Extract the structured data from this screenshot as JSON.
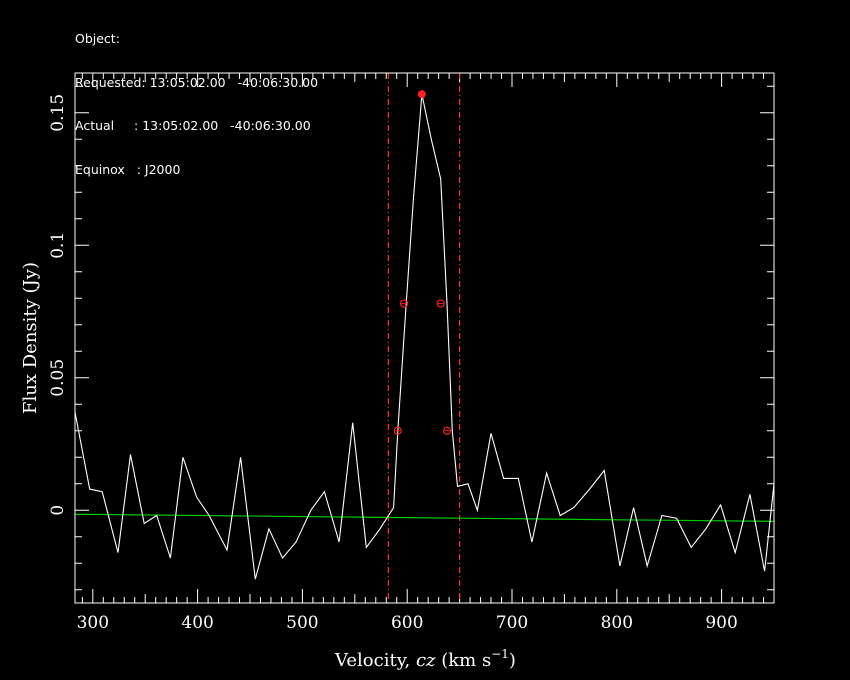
{
  "header": {
    "object_line": "Object:",
    "requested_line": "Requested: 13:05:02.00   -40:06:30.00",
    "actual_line": "Actual     : 13:05:02.00   -40:06:30.00",
    "equinox_line": "Equinox   : J2000"
  },
  "chart_data": {
    "type": "line",
    "title": "",
    "xlabel": "Velocity, cz (km s⁻¹)",
    "xlabel_main": "Velocity, ",
    "xlabel_italic": "cz",
    "xlabel_units": " (km s",
    "xlabel_sup": "−1",
    "xlabel_close": ")",
    "ylabel": "Flux Density (Jy)",
    "xlim": [
      283,
      950
    ],
    "ylim": [
      -0.035,
      0.165
    ],
    "x_ticks": [
      300,
      400,
      500,
      600,
      700,
      800,
      900
    ],
    "x_tick_labels": [
      "300",
      "400",
      "500",
      "600",
      "700",
      "800",
      "900"
    ],
    "y_ticks": [
      0,
      0.05,
      0.1,
      0.15
    ],
    "y_tick_labels": [
      "0",
      "0.05",
      "0.1",
      "0.15"
    ],
    "grid": false,
    "colors": {
      "background": "#000000",
      "spectrum": "#ffffff",
      "baseline": "#00cc00",
      "markers": "#ff2020",
      "window_lines": "#ff3030",
      "axes": "#ffffff"
    },
    "series": [
      {
        "x": [
          283,
          297,
          309,
          324,
          336,
          349,
          361,
          374,
          386,
          399,
          411,
          428,
          441,
          455,
          468,
          481,
          494,
          508,
          521,
          535,
          548,
          561,
          574,
          587,
          591,
          599,
          606,
          614,
          623,
          632,
          638,
          643,
          648,
          658,
          667,
          680,
          692,
          706,
          719,
          733,
          746,
          759,
          774,
          788,
          803,
          816,
          829,
          843,
          857,
          871,
          885,
          899,
          913,
          927,
          941,
          950
        ],
        "y": [
          0.037,
          0.008,
          0.007,
          -0.016,
          0.021,
          -0.005,
          -0.002,
          -0.018,
          0.02,
          0.005,
          -0.002,
          -0.015,
          0.02,
          -0.026,
          -0.007,
          -0.018,
          -0.012,
          0.0,
          0.007,
          -0.012,
          0.033,
          -0.014,
          -0.007,
          0.001,
          0.03,
          0.078,
          0.118,
          0.157,
          0.14,
          0.125,
          0.078,
          0.03,
          0.009,
          0.01,
          0.0,
          0.029,
          0.012,
          0.012,
          -0.012,
          0.014,
          -0.002,
          0.001,
          0.008,
          0.015,
          -0.021,
          0.001,
          -0.021,
          -0.002,
          -0.003,
          -0.014,
          -0.007,
          0.002,
          -0.016,
          0.006,
          -0.023,
          0.01
        ]
      }
    ],
    "baseline": {
      "x": [
        283,
        950
      ],
      "y": [
        -0.0015,
        -0.0042
      ]
    },
    "peak_marker": {
      "x": 614,
      "y": 0.157
    },
    "level_markers": [
      {
        "x": 591,
        "y": 0.03
      },
      {
        "x": 597,
        "y": 0.078
      },
      {
        "x": 632,
        "y": 0.078
      },
      {
        "x": 638,
        "y": 0.03
      }
    ],
    "window_lines_x": [
      582,
      650
    ]
  }
}
